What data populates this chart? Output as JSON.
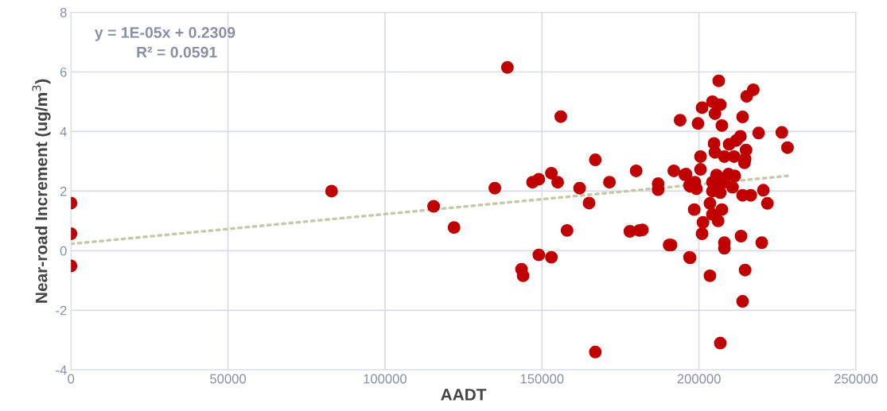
{
  "chart_data": {
    "type": "scatter",
    "xlabel": "AADT",
    "ylabel": "Near-road Increment (ug/m$^{3}$)",
    "xlim": [
      0,
      250000
    ],
    "xticks": [
      0,
      50000,
      100000,
      150000,
      200000,
      250000
    ],
    "ylim": [
      -4,
      8
    ],
    "yticks": [
      -4,
      -2,
      0,
      2,
      4,
      6,
      8
    ],
    "grid": true,
    "annotations": [
      "y = 1E-05x + 0.2309",
      "R² = 0.0591"
    ],
    "series": [
      {
        "color": "#c00000",
        "marker": "circle",
        "x": [
          0,
          0,
          0,
          83000,
          115500,
          122000,
          135000,
          139000,
          143500,
          144000,
          147000,
          149000,
          149000,
          153000,
          153000,
          155000,
          156000,
          158000,
          162000,
          165000,
          167000,
          167000,
          171500,
          178000,
          180000,
          181000,
          182000,
          187000,
          187000,
          190500,
          192000,
          194000,
          195500,
          197000,
          197000,
          198500,
          199700,
          201000,
          204300,
          206800,
          205100,
          207300,
          213900,
          217300,
          215200,
          206300,
          219000,
          226400,
          228200,
          213200,
          211900,
          209600,
          215000,
          214700,
          214500,
          204800,
          205100,
          200500,
          208100,
          211200,
          200500,
          195900,
          209400,
          211400,
          205600,
          198700,
          197200,
          199200,
          204300,
          206300,
          208100,
          210700,
          204300,
          206800,
          213900,
          216500,
          220500,
          221800,
          203500,
          207300,
          204300,
          201300,
          206100,
          201000,
          191100,
          208100,
          208100,
          213400,
          220000,
          197200,
          203500,
          214700,
          213900,
          206800
        ],
        "values": [
          1.6,
          0.57,
          -0.51,
          2.0,
          1.49,
          0.78,
          2.1,
          6.15,
          -0.62,
          -0.84,
          2.3,
          2.4,
          -0.14,
          -0.22,
          2.6,
          2.3,
          4.5,
          0.68,
          2.1,
          1.6,
          3.05,
          -3.4,
          2.3,
          0.65,
          2.68,
          0.68,
          0.7,
          2.25,
          2.05,
          0.19,
          2.68,
          4.38,
          2.55,
          2.2,
          -0.22,
          1.38,
          4.27,
          4.8,
          5.0,
          4.9,
          4.6,
          4.2,
          4.49,
          5.4,
          5.18,
          5.7,
          3.95,
          3.97,
          3.46,
          3.84,
          3.7,
          3.57,
          3.38,
          3.08,
          2.95,
          3.6,
          3.3,
          3.16,
          3.16,
          3.16,
          2.73,
          2.57,
          2.57,
          2.51,
          2.54,
          2.3,
          2.16,
          2.08,
          2.3,
          2.16,
          2.3,
          2.13,
          2.0,
          1.95,
          1.86,
          1.86,
          2.03,
          1.59,
          1.59,
          1.38,
          1.22,
          0.95,
          1.0,
          0.57,
          0.19,
          0.27,
          0.08,
          0.49,
          0.27,
          -0.24,
          -0.84,
          -0.65,
          -1.7,
          -3.1
        ]
      },
      {
        "type": "line",
        "color": "#c5c9a8",
        "line_style": "dotted",
        "x": [
          0,
          228200
        ],
        "values": [
          0.23,
          2.51
        ],
        "marker": "none"
      }
    ]
  }
}
